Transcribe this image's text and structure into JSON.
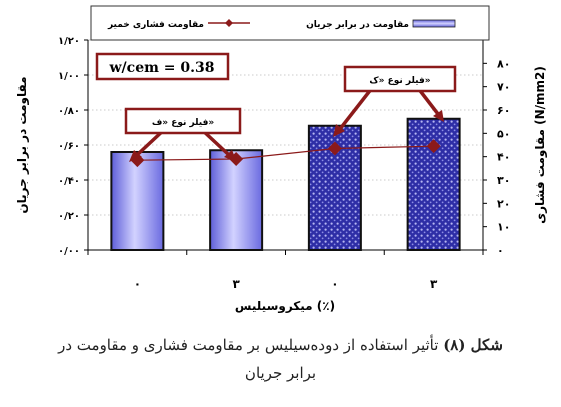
{
  "chart_data": {
    "type": "bar",
    "categories": [
      "۰",
      "۳",
      "۰",
      "۳"
    ],
    "xlabel": "میکروسیلیس (٪)",
    "ylabel_left": "مقاومت در برابر جریان",
    "ylabel_right": "مقاومت فشاری (N/mm2)",
    "left_axis": {
      "ylim": [
        0,
        1.2
      ],
      "ticks": [
        0,
        0.2,
        0.4,
        0.6,
        0.8,
        1.0,
        1.2
      ],
      "tick_labels": [
        "۰/۰۰",
        "۰/۲۰",
        "۰/۴۰",
        "۰/۶۰",
        "۰/۸۰",
        "۱/۰۰",
        "۱/۲۰"
      ]
    },
    "right_axis": {
      "ylim": [
        0,
        90
      ],
      "ticks": [
        0,
        10,
        20,
        30,
        40,
        50,
        60,
        70,
        80
      ],
      "tick_labels": [
        "۰",
        "۱۰",
        "۲۰",
        "۳۰",
        "۴۰",
        "۵۰",
        "۶۰",
        "۷۰",
        "۸۰"
      ]
    },
    "series": [
      {
        "name": "مقاومت در برابر جریان",
        "kind": "bar",
        "axis": "left",
        "values": [
          0.56,
          0.57,
          0.71,
          0.75
        ],
        "colors": [
          "#9898f0",
          "#9898f0",
          "#3030a8",
          "#3030a8"
        ]
      },
      {
        "name": "مقاومت فشاری خمیر",
        "kind": "line",
        "axis": "right",
        "values": [
          38.5,
          39.0,
          43.5,
          44.5
        ],
        "color": "#8b1a1a"
      }
    ],
    "legend_position": "top",
    "annotations": [
      {
        "text": "w/cem = 0.38"
      },
      {
        "text": "فیلر نوع «ف»"
      },
      {
        "text": "فیلر نوع «ک»"
      }
    ]
  },
  "caption": {
    "label": "شکل (۸)",
    "line1": " تأثیر استفاده از دوده‌سیلیس بر مقاومت فشاری و مقاومت در",
    "line2": "برابر جریان"
  }
}
